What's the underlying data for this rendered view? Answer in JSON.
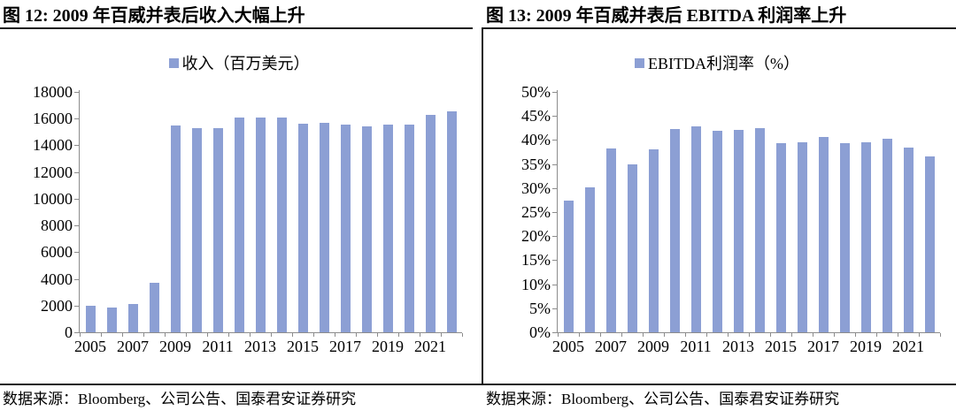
{
  "figures": [
    {
      "title": "图 12: 2009 年百威并表后收入大幅上升",
      "source": "数据来源：Bloomberg、公司公告、国泰君安证券研究"
    },
    {
      "title": "图 13: 2009 年百威并表后 EBITDA 利润率上升",
      "source": "数据来源：Bloomberg、公司公告、国泰君安证券研究"
    }
  ],
  "colors": {
    "bar": "#8C9FD4",
    "axis": "#8c8c8c",
    "rule": "#1a1a1a",
    "text": "#000000"
  },
  "chart_data": [
    {
      "type": "bar",
      "title": "图 12: 2009 年百威并表后收入大幅上升",
      "legend": "收入（百万美元）",
      "categories": [
        "2005",
        "2006",
        "2007",
        "2008",
        "2009",
        "2010",
        "2011",
        "2012",
        "2013",
        "2014",
        "2015",
        "2016",
        "2017",
        "2018",
        "2019",
        "2020",
        "2021",
        "2022"
      ],
      "values": [
        2000,
        1850,
        2100,
        3700,
        15500,
        15300,
        15300,
        16050,
        16050,
        16100,
        15600,
        15700,
        15550,
        15450,
        15550,
        15550,
        16250,
        16550
      ],
      "xlabel": "",
      "ylabel": "",
      "ylim": [
        0,
        18000
      ],
      "ytick_step": 2000,
      "yticks": [
        "18000",
        "16000",
        "14000",
        "12000",
        "10000",
        "8000",
        "6000",
        "4000",
        "2000",
        "0"
      ],
      "xtick_labels": [
        "2005",
        "2007",
        "2009",
        "2011",
        "2013",
        "2015",
        "2017",
        "2019",
        "2021"
      ],
      "grid": false,
      "legend_position": "top-center",
      "bar_color": "#8C9FD4"
    },
    {
      "type": "bar",
      "title": "图 13: 2009 年百威并表后 EBITDA 利润率上升",
      "legend": "EBITDA利润率（%）",
      "categories": [
        "2005",
        "2006",
        "2007",
        "2008",
        "2009",
        "2010",
        "2011",
        "2012",
        "2013",
        "2014",
        "2015",
        "2016",
        "2017",
        "2018",
        "2019",
        "2020",
        "2021",
        "2022"
      ],
      "values": [
        27.3,
        30.2,
        38.3,
        35.0,
        38.0,
        42.2,
        42.9,
        42.0,
        42.1,
        42.4,
        39.4,
        39.6,
        40.6,
        39.3,
        39.6,
        40.2,
        38.4,
        36.5
      ],
      "xlabel": "",
      "ylabel": "",
      "ylim": [
        0,
        50
      ],
      "ytick_step": 5,
      "yticks": [
        "50%",
        "45%",
        "40%",
        "35%",
        "30%",
        "25%",
        "20%",
        "15%",
        "10%",
        "5%",
        "0%"
      ],
      "xtick_labels": [
        "2005",
        "2007",
        "2009",
        "2011",
        "2013",
        "2015",
        "2017",
        "2019",
        "2021"
      ],
      "grid": false,
      "legend_position": "top-center",
      "bar_color": "#8C9FD4"
    }
  ]
}
